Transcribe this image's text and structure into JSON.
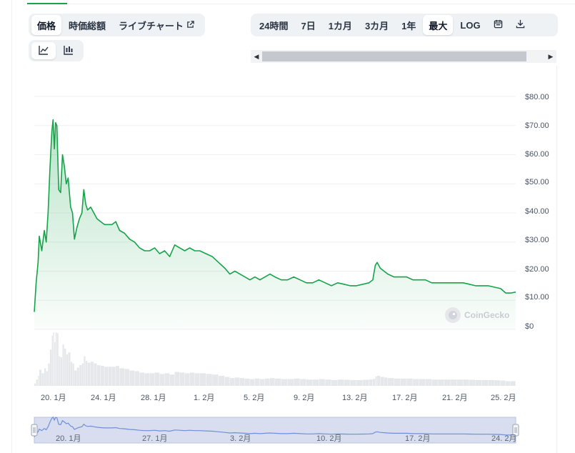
{
  "tabs": {
    "price": "価格",
    "market_cap": "時価総額",
    "live_chart": "ライブチャート"
  },
  "chart_type_buttons": [
    {
      "icon": "line-chart-icon"
    },
    {
      "icon": "candlestick-chart-icon"
    }
  ],
  "ranges": [
    "24時間",
    "7日",
    "1カ月",
    "3カ月",
    "1年",
    "最大",
    "LOG"
  ],
  "active_range": "最大",
  "toolbar_icons": [
    "calendar-icon",
    "download-icon"
  ],
  "watermark": "CoinGecko",
  "colors": {
    "line": "#16a34a",
    "volume": "#e5e7eb",
    "navigator_fill": "#d8def0",
    "navigator_line": "#6f8fd8"
  },
  "chart_data": {
    "type": "area",
    "yticks": [
      "$80.00",
      "$70.00",
      "$60.00",
      "$50.00",
      "$40.00",
      "$30.00",
      "$20.00",
      "$10.00",
      "$0"
    ],
    "ylim": [
      0,
      80
    ],
    "xticks": [
      "20. 1月",
      "24. 1月",
      "28. 1月",
      "1. 2月",
      "5. 2月",
      "9. 2月",
      "13. 2月",
      "17. 2月",
      "21. 2月",
      "25. 2月"
    ],
    "x_days": [
      0,
      4,
      8,
      12,
      16,
      20,
      24,
      28,
      32,
      36
    ],
    "xlim": [
      -1.2,
      37.2
    ],
    "series": [
      {
        "points": [
          [
            -1.2,
            6
          ],
          [
            -1.05,
            16
          ],
          [
            -0.9,
            23
          ],
          [
            -0.8,
            32
          ],
          [
            -0.6,
            27
          ],
          [
            -0.4,
            34
          ],
          [
            -0.25,
            30
          ],
          [
            -0.1,
            40
          ],
          [
            0.05,
            55
          ],
          [
            0.2,
            68
          ],
          [
            0.3,
            72
          ],
          [
            0.4,
            62
          ],
          [
            0.5,
            71
          ],
          [
            0.6,
            70
          ],
          [
            0.75,
            48
          ],
          [
            0.9,
            47
          ],
          [
            1.05,
            60
          ],
          [
            1.2,
            56
          ],
          [
            1.35,
            50
          ],
          [
            1.5,
            52
          ],
          [
            1.7,
            42
          ],
          [
            1.85,
            40
          ],
          [
            2.0,
            31
          ],
          [
            2.2,
            35
          ],
          [
            2.4,
            38
          ],
          [
            2.6,
            40
          ],
          [
            2.75,
            48
          ],
          [
            2.9,
            43
          ],
          [
            3.05,
            41
          ],
          [
            3.3,
            42
          ],
          [
            3.55,
            40
          ],
          [
            3.8,
            38
          ],
          [
            4.1,
            37
          ],
          [
            4.4,
            36
          ],
          [
            4.7,
            36
          ],
          [
            5.0,
            36
          ],
          [
            5.3,
            37
          ],
          [
            5.6,
            34
          ],
          [
            6.0,
            33
          ],
          [
            6.4,
            31
          ],
          [
            6.8,
            30
          ],
          [
            7.2,
            28
          ],
          [
            7.6,
            27
          ],
          [
            8.0,
            27
          ],
          [
            8.4,
            28
          ],
          [
            8.8,
            26
          ],
          [
            9.2,
            27
          ],
          [
            9.6,
            25
          ],
          [
            10.0,
            29
          ],
          [
            10.4,
            28
          ],
          [
            10.8,
            27
          ],
          [
            11.2,
            28
          ],
          [
            11.6,
            27
          ],
          [
            12.0,
            27
          ],
          [
            12.5,
            26
          ],
          [
            13.0,
            25
          ],
          [
            13.5,
            23
          ],
          [
            14.0,
            21
          ],
          [
            14.4,
            19
          ],
          [
            14.8,
            20
          ],
          [
            15.2,
            19
          ],
          [
            15.6,
            18
          ],
          [
            16.0,
            17
          ],
          [
            16.4,
            18
          ],
          [
            16.8,
            17
          ],
          [
            17.2,
            18
          ],
          [
            17.6,
            19
          ],
          [
            18.0,
            18
          ],
          [
            18.5,
            17
          ],
          [
            19.0,
            17
          ],
          [
            19.5,
            18
          ],
          [
            20.0,
            17
          ],
          [
            20.5,
            16
          ],
          [
            21.0,
            16
          ],
          [
            21.5,
            17
          ],
          [
            22.0,
            16
          ],
          [
            22.5,
            15
          ],
          [
            23.0,
            16
          ],
          [
            23.5,
            15.5
          ],
          [
            24.0,
            15
          ],
          [
            24.5,
            15
          ],
          [
            25.0,
            15.5
          ],
          [
            25.5,
            16
          ],
          [
            25.8,
            17
          ],
          [
            26.0,
            22
          ],
          [
            26.15,
            23
          ],
          [
            26.4,
            21
          ],
          [
            26.7,
            20
          ],
          [
            27.0,
            19
          ],
          [
            27.5,
            18
          ],
          [
            28.0,
            18
          ],
          [
            28.5,
            18
          ],
          [
            29.0,
            17
          ],
          [
            29.5,
            17
          ],
          [
            30.0,
            17
          ],
          [
            30.5,
            16
          ],
          [
            31.0,
            16
          ],
          [
            31.5,
            16
          ],
          [
            32.0,
            16
          ],
          [
            32.5,
            16
          ],
          [
            33.0,
            16
          ],
          [
            33.5,
            15.5
          ],
          [
            34.0,
            15
          ],
          [
            34.5,
            15
          ],
          [
            35.0,
            15
          ],
          [
            35.5,
            14.5
          ],
          [
            36.0,
            14
          ],
          [
            36.4,
            12.5
          ],
          [
            36.8,
            12.5
          ],
          [
            37.2,
            12.8
          ]
        ]
      }
    ]
  },
  "navigator": {
    "xticks": [
      "20. 1月",
      "27. 1月",
      "3. 2月",
      "10. 2月",
      "17. 2月",
      "24. 2月"
    ],
    "x_days": [
      0,
      7,
      14,
      21,
      28,
      35
    ]
  }
}
